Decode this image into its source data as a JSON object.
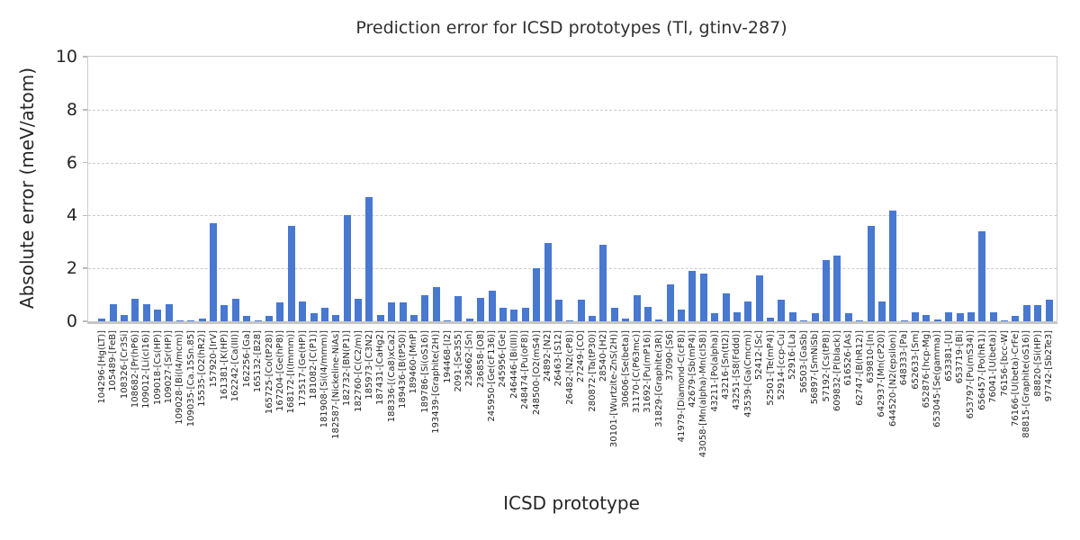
{
  "title": "Prediction error for ICSD prototypes (Tl, gtinv-287)",
  "chart_data": {
    "type": "bar",
    "title": "Prediction error for ICSD prototypes (Tl, gtinv-287)",
    "xlabel": "ICSD prototype",
    "ylabel": "Absolute error (meV/atom)",
    "ylim": [
      0,
      10
    ],
    "yticks": [
      0,
      2,
      4,
      6,
      8,
      10
    ],
    "grid": "dashed horizontal gridlines",
    "legend": "none",
    "bar_color": "#4878d0",
    "categories": [
      "104296-[Hg(LT)]",
      "105489-[FeB]",
      "108326-[Cr3Si]",
      "108682-[Pr(hP6)]",
      "109012-[Li(cI16)]",
      "109018-[Cs(HP)]",
      "109027-[Sr(HP)]",
      "109028-[Bi(I4/mcm)]",
      "109035-[Ca.15Sn.85]",
      "15535-[O2(hR2)]",
      "157920-[IrV]",
      "161381-[K(HP)]",
      "162242-[Ca(III)]",
      "162256-[Ga]",
      "165132-[B28]",
      "165725-[Co(tP28)]",
      "167204-[Ge(hP8)]",
      "168172-[I(Immm)]",
      "173517-[Ge(HP)]",
      "181082-[C(P1)]",
      "181908-[Si(I4/mmm)]",
      "182587-[Nickeline-NiAs]",
      "182732-[BN(P1)]",
      "182760-[C(C2/m)]",
      "185973-[C3N2]",
      "187431-[CaHg2]",
      "188336-[(Ca8)xCa2]",
      "189436-[B(tP50)]",
      "189460-[MnP]",
      "189786-[Si(oS16)]",
      "193439-[Graphite(2H)]",
      "194468-[I2]",
      "2091-[Se3S5]",
      "236662-[Sn]",
      "236858-[O8]",
      "245950-[Ge(cF136)]",
      "245956-[Ge]",
      "246446-[Bi(III)]",
      "248474-[Pu(oF8)]",
      "248500-[O2(mS4)]",
      "24892-[N2]",
      "26463-[S12]",
      "26482-[N2(cP8)]",
      "27249-[CO]",
      "280872-[Ta(tP30)]",
      "28540-[H2]",
      "30101-[Wurtzite-ZnS(2H)]",
      "30606-[Se(beta)]",
      "31170-[C(P63mc)]",
      "31692-[Pu(mP16)]",
      "31829-[Graphite(3R)]",
      "37090-[S6]",
      "41979-[Diamond-C(cF8)]",
      "42679-[Sb(mP4)]",
      "43058-[Mn(alpha)-Mn(cI58)]",
      "43211-[Po(alpha)]",
      "43216-[Sn(tI2)]",
      "43251-[S8(Fddd)]",
      "43539-[Ga(Cmcm)]",
      "52412-[Sc]",
      "52501-[Te(mP4)]",
      "52914-[ccp-Cu]",
      "52916-[La]",
      "56503-[GaSb]",
      "56897-[SmNiSb]",
      "57192-[Cs(tP8)]",
      "609832-[P(black)]",
      "616526-[As]",
      "62747-[B(hR12)]",
      "639810-[In]",
      "642937-[Mn(cP20)]",
      "644520-[N2(epsilon)]",
      "648333-[Pa]",
      "652633-[Sm]",
      "652876-[hcp-Mg]",
      "653045-[Se(gamma)]",
      "653381-[U]",
      "653719-[Bi]",
      "653797-[Pu(mS34)]",
      "656457-[Po(hR1)]",
      "76041-[U(beta)]",
      "76156-[bcc-W]",
      "76166-[U(beta)-CrFe]",
      "88815-[Graphite(oS16)]",
      "88820-[Si(HP)]",
      "97742-[Sb2Te3]"
    ],
    "values": [
      0.1,
      0.65,
      0.25,
      0.85,
      0.65,
      0.45,
      0.65,
      0.03,
      0.05,
      0.1,
      3.7,
      0.6,
      0.85,
      0.2,
      0.03,
      0.2,
      0.7,
      3.6,
      0.75,
      0.3,
      0.5,
      0.25,
      4.0,
      0.85,
      4.7,
      0.25,
      0.7,
      0.7,
      0.25,
      1.0,
      1.3,
      0.03,
      0.95,
      0.1,
      0.9,
      1.15,
      0.5,
      0.45,
      0.5,
      2.0,
      2.95,
      0.8,
      0.03,
      0.8,
      0.2,
      2.9,
      0.5,
      0.1,
      1.0,
      0.55,
      0.08,
      1.4,
      0.45,
      1.9,
      1.8,
      0.3,
      1.05,
      0.35,
      0.75,
      1.75,
      0.15,
      0.8,
      0.35,
      0.05,
      0.3,
      2.3,
      2.5,
      0.3,
      0.05,
      3.6,
      0.75,
      4.2,
      0.02,
      0.35,
      0.25,
      0.08,
      0.35,
      0.3,
      0.35,
      3.4,
      0.35,
      0.02,
      0.2,
      0.6,
      0.6,
      0.8
    ]
  }
}
